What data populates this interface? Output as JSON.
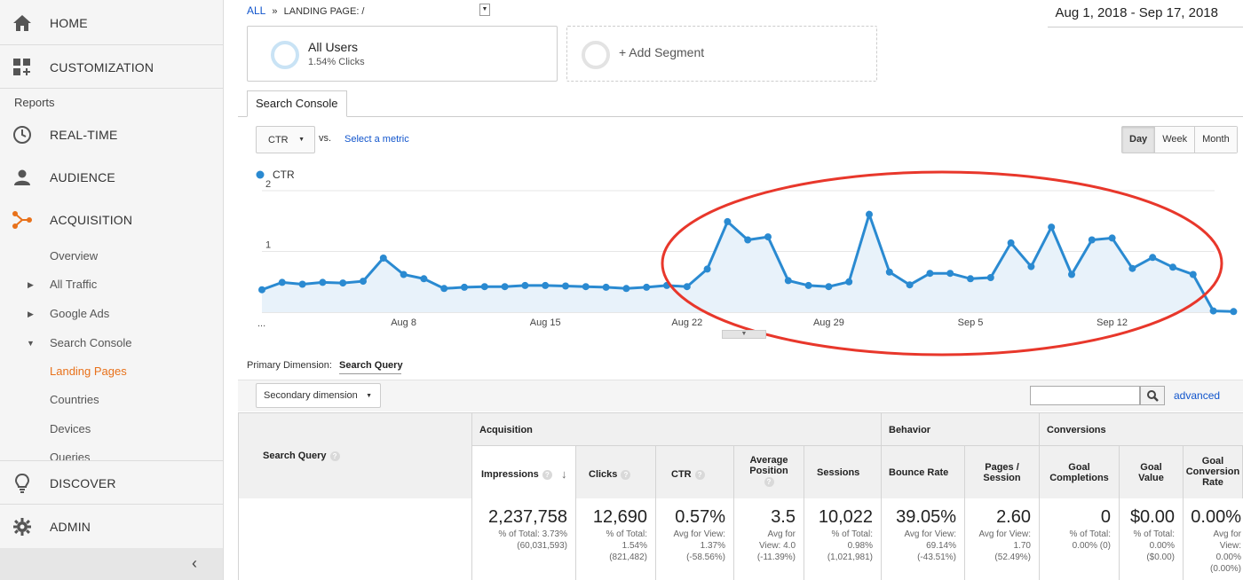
{
  "sidebar": {
    "home": "HOME",
    "customization": "CUSTOMIZATION",
    "reports_label": "Reports",
    "realtime": "REAL-TIME",
    "audience": "AUDIENCE",
    "acquisition": "ACQUISITION",
    "sub_items": [
      "Overview",
      "All Traffic",
      "Google Ads",
      "Search Console",
      "Landing Pages",
      "Countries",
      "Devices",
      "Queries"
    ],
    "discover": "DISCOVER",
    "admin": "ADMIN",
    "accent_color": "#e8711a"
  },
  "header": {
    "breadcrumb_all": "ALL",
    "breadcrumb_sep": "»",
    "breadcrumb_page": "LANDING PAGE: /",
    "date_range": "Aug 1, 2018 - Sep 17, 2018"
  },
  "segments": [
    {
      "title": "All Users",
      "subtitle": "1.54% Clicks"
    },
    {
      "title": "+ Add Segment"
    }
  ],
  "tabs": {
    "active": "Search Console"
  },
  "controls": {
    "metric": "CTR",
    "vs": "vs.",
    "select_metric": "Select a metric",
    "granularity": [
      "Day",
      "Week",
      "Month"
    ],
    "granularity_selected": "Day"
  },
  "chart_data": {
    "type": "line",
    "series": [
      {
        "name": "CTR",
        "color": "#2a8ad1",
        "values": [
          0.37,
          0.49,
          0.46,
          0.49,
          0.48,
          0.51,
          0.89,
          0.62,
          0.55,
          0.39,
          0.41,
          0.42,
          0.42,
          0.44,
          0.44,
          0.43,
          0.42,
          0.41,
          0.39,
          0.41,
          0.44,
          0.42,
          0.71,
          1.49,
          1.19,
          1.24,
          0.52,
          0.44,
          0.42,
          0.5,
          1.61,
          0.66,
          0.45,
          0.64,
          0.64,
          0.55,
          0.57,
          1.14,
          0.75,
          1.4,
          0.62,
          1.19,
          1.22,
          0.72,
          0.9,
          0.74,
          0.62,
          0.02,
          0.01
        ]
      }
    ],
    "x_start_label": "...",
    "x_ticks": [
      "Aug 8",
      "Aug 15",
      "Aug 22",
      "Aug 29",
      "Sep 5",
      "Sep 12"
    ],
    "y_ticks": [
      1,
      2
    ],
    "ylim": [
      0,
      2
    ],
    "grid": true,
    "annotation": "red ellipse highlighting Aug 22 – Sep 17",
    "annotation_color": "#e8372b"
  },
  "table": {
    "primary_dimension_label": "Primary Dimension:",
    "primary_dimension_value": "Search Query",
    "secondary_dimension": "Secondary dimension",
    "advanced": "advanced",
    "group_headers": [
      "Acquisition",
      "Behavior",
      "Conversions"
    ],
    "row_header": "Search Query",
    "columns": [
      {
        "label": "Impressions",
        "value": "2,237,758",
        "sub1": "% of Total: 3.73%",
        "sub2": "(60,031,593)"
      },
      {
        "label": "Clicks",
        "value": "12,690",
        "sub1": "% of Total:",
        "sub2": "1.54%",
        "sub3": "(821,482)"
      },
      {
        "label": "CTR",
        "value": "0.57%",
        "sub1": "Avg for View:",
        "sub2": "1.37%",
        "sub3": "(-58.56%)"
      },
      {
        "label_1": "Average",
        "label_2": "Position",
        "value": "3.5",
        "sub1": "Avg for",
        "sub2": "View: 4.0",
        "sub3": "(-11.39%)"
      },
      {
        "label": "Sessions",
        "value": "10,022",
        "sub1": "% of Total:",
        "sub2": "0.98%",
        "sub3": "(1,021,981)"
      },
      {
        "label": "Bounce Rate",
        "value": "39.05%",
        "sub1": "Avg for View:",
        "sub2": "69.14%",
        "sub3": "(-43.51%)"
      },
      {
        "label_1": "Pages /",
        "label_2": "Session",
        "value": "2.60",
        "sub1": "Avg for View:",
        "sub2": "1.70",
        "sub3": "(52.49%)"
      },
      {
        "label_1": "Goal",
        "label_2": "Completions",
        "value": "0",
        "sub1": "% of Total:",
        "sub2": "0.00% (0)"
      },
      {
        "label_1": "Goal",
        "label_2": "Value",
        "value": "$0.00",
        "sub1": "% of Total:",
        "sub2": "0.00%",
        "sub3": "($0.00)"
      },
      {
        "label_1": "Goal",
        "label_2": "Conversion",
        "label_3": "Rate",
        "value": "0.00%",
        "sub1": "Avg for",
        "sub2": "View:",
        "sub3": "0.00%",
        "sub4": "(0.00%)"
      }
    ]
  }
}
